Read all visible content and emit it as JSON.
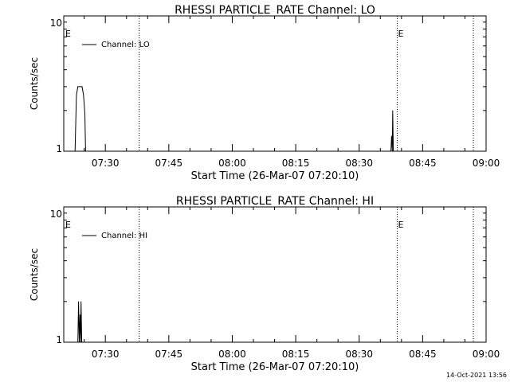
{
  "footer_timestamp": "14-Oct-2021 13:56",
  "chart_data": [
    {
      "type": "line",
      "title": "RHESSI PARTICLE_RATE Channel: LO",
      "xlabel": "Start Time (26-Mar-07 07:20:10)",
      "ylabel": "Counts/sec",
      "yscale": "log",
      "ylim": [
        1,
        10
      ],
      "y_tick_labels": [
        "1",
        "10"
      ],
      "xlim": [
        "07:20:10",
        "09:00"
      ],
      "x_tick_labels": [
        "07:30",
        "07:45",
        "08:00",
        "08:15",
        "08:30",
        "08:45",
        "09:00"
      ],
      "legend_position": "top-left",
      "grid": false,
      "vertical_markers": [
        {
          "time": "07:38",
          "label": ""
        },
        {
          "time": "08:39",
          "label": "E"
        },
        {
          "time": "08:57",
          "label": ""
        }
      ],
      "edge_flag": "E",
      "series": [
        {
          "name": "Channel: LO",
          "color": "#000000",
          "points": [
            [
              "07:22:50",
              1
            ],
            [
              "07:23:10",
              2.6
            ],
            [
              "07:23:30",
              3.0
            ],
            [
              "07:24:30",
              3.0
            ],
            [
              "07:24:50",
              2.6
            ],
            [
              "07:25:10",
              1.9
            ],
            [
              "07:25:20",
              1
            ],
            [
              "08:37:30",
              1
            ],
            [
              "08:37:40",
              1.3
            ],
            [
              "08:37:50",
              1
            ],
            [
              "08:37:55",
              2.0
            ],
            [
              "08:38:05",
              1
            ]
          ]
        }
      ]
    },
    {
      "type": "line",
      "title": "RHESSI PARTICLE_RATE Channel: HI",
      "xlabel": "Start Time (26-Mar-07 07:20:10)",
      "ylabel": "Counts/sec",
      "yscale": "log",
      "ylim": [
        1,
        10
      ],
      "y_tick_labels": [
        "1",
        "10"
      ],
      "xlim": [
        "07:20:10",
        "09:00"
      ],
      "x_tick_labels": [
        "07:30",
        "07:45",
        "08:00",
        "08:15",
        "08:30",
        "08:45",
        "09:00"
      ],
      "legend_position": "top-left",
      "grid": false,
      "vertical_markers": [
        {
          "time": "07:38",
          "label": ""
        },
        {
          "time": "08:39",
          "label": "E"
        },
        {
          "time": "08:57",
          "label": ""
        }
      ],
      "edge_flag": "E",
      "series": [
        {
          "name": "Channel: HI",
          "color": "#000000",
          "points": [
            [
              "07:23:30",
              1
            ],
            [
              "07:23:40",
              2.0
            ],
            [
              "07:23:50",
              1
            ],
            [
              "07:24:00",
              1.6
            ],
            [
              "07:24:10",
              1
            ],
            [
              "07:24:15",
              2.0
            ],
            [
              "07:24:25",
              1
            ]
          ]
        }
      ]
    }
  ]
}
